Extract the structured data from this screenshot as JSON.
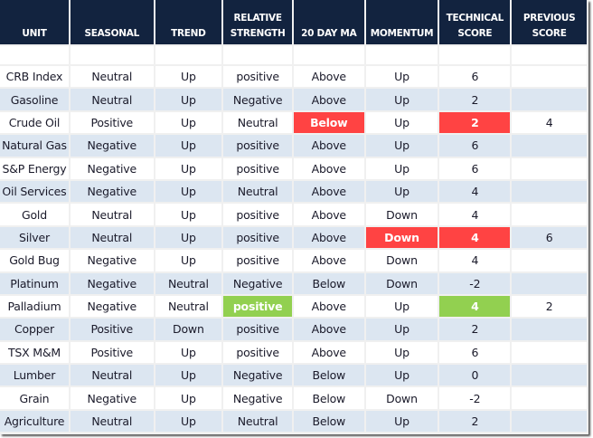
{
  "headers": [
    "UNIT",
    "SEASONAL",
    "TREND",
    "RELATIVE\nSTRENGTH",
    "20 DAY MA",
    "MOMENTUM",
    "TECHNICAL\nSCORE",
    "PREVIOUS\nSCORE"
  ],
  "colors": {
    "header": "#12233f",
    "stripe": "#dce6f1",
    "negative_highlight": "#ff4343",
    "positive_highlight": "#92d050"
  },
  "rows": [
    {
      "cells": [
        "CRB Index",
        "Neutral",
        "Up",
        "positive",
        "Above",
        "Up",
        "6",
        ""
      ]
    },
    {
      "cells": [
        "Gasoline",
        "Neutral",
        "Up",
        "Negative",
        "Above",
        "Up",
        "2",
        ""
      ]
    },
    {
      "cells": [
        "Crude Oil",
        "Positive",
        "Up",
        "Neutral",
        "Below",
        "Up",
        "2",
        "4"
      ],
      "highlight": {
        "4": "red",
        "6": "red"
      }
    },
    {
      "cells": [
        "Natural Gas",
        "Negative",
        "Up",
        "positive",
        "Above",
        "Up",
        "6",
        ""
      ]
    },
    {
      "cells": [
        "S&P Energy",
        "Negative",
        "Up",
        "positive",
        "Above",
        "Up",
        "6",
        ""
      ]
    },
    {
      "cells": [
        "Oil Services",
        "Negative",
        "Up",
        "Neutral",
        "Above",
        "Up",
        "4",
        ""
      ]
    },
    {
      "cells": [
        "Gold",
        "Neutral",
        "Up",
        "positive",
        "Above",
        "Down",
        "4",
        ""
      ]
    },
    {
      "cells": [
        "Silver",
        "Neutral",
        "Up",
        "positive",
        "Above",
        "Down",
        "4",
        "6"
      ],
      "highlight": {
        "5": "red",
        "6": "red"
      }
    },
    {
      "cells": [
        "Gold Bug",
        "Negative",
        "Up",
        "positive",
        "Above",
        "Down",
        "4",
        ""
      ]
    },
    {
      "cells": [
        "Platinum",
        "Negative",
        "Neutral",
        "Negative",
        "Below",
        "Down",
        "-2",
        ""
      ]
    },
    {
      "cells": [
        "Palladium",
        "Negative",
        "Neutral",
        "positive",
        "Above",
        "Up",
        "4",
        "2"
      ],
      "highlight": {
        "3": "green",
        "6": "green"
      }
    },
    {
      "cells": [
        "Copper",
        "Positive",
        "Down",
        "positive",
        "Above",
        "Up",
        "2",
        ""
      ]
    },
    {
      "cells": [
        "TSX M&M",
        "Positive",
        "Up",
        "positive",
        "Above",
        "Up",
        "6",
        ""
      ]
    },
    {
      "cells": [
        "Lumber",
        "Neutral",
        "Up",
        "Negative",
        "Below",
        "Up",
        "0",
        ""
      ]
    },
    {
      "cells": [
        "Grain",
        "Negative",
        "Up",
        "Negative",
        "Below",
        "Down",
        "-2",
        ""
      ]
    },
    {
      "cells": [
        "Agriculture",
        "Neutral",
        "Up",
        "Neutral",
        "Below",
        "Up",
        "2",
        ""
      ]
    }
  ]
}
